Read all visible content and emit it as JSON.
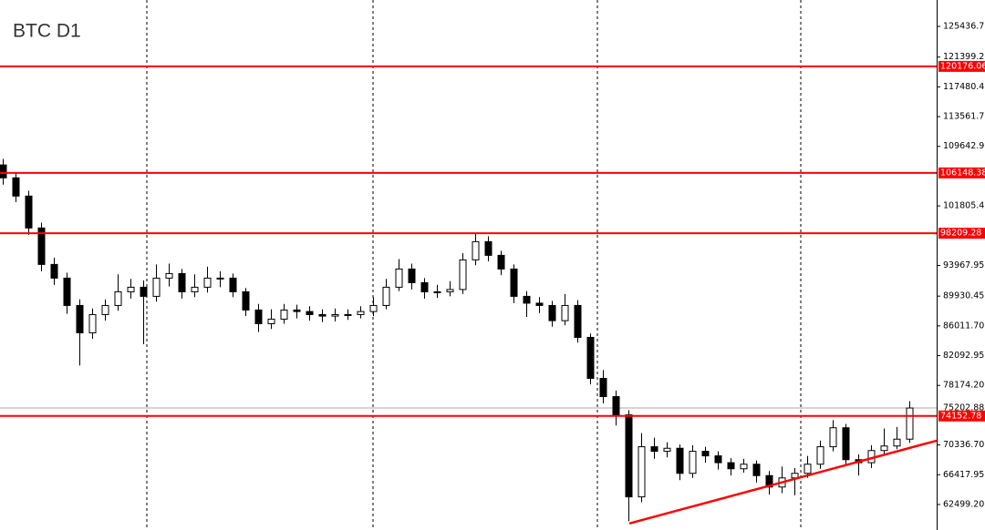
{
  "chart_data": {
    "type": "candlestick",
    "title": "BTC D1",
    "open": [
      107200,
      105500,
      103100,
      98900,
      94100,
      92300,
      88700,
      85100,
      87500,
      88700,
      90500,
      91100,
      89900,
      92300,
      92900,
      90500,
      91100,
      92300,
      92300,
      90500,
      88100,
      86300,
      86900,
      88100,
      87900,
      87500,
      87300,
      87500,
      87500,
      87900,
      88700,
      91100,
      93500,
      91700,
      90500,
      90500,
      90800,
      94700,
      97100,
      95300,
      93500,
      89900,
      89000,
      88700,
      86700,
      88700,
      84500,
      79100,
      76700,
      74300,
      63500,
      70100,
      69500,
      69900,
      66600,
      69500,
      68900,
      68000,
      67200,
      67800,
      66300,
      64800,
      66000,
      66600,
      67800,
      70100,
      72600,
      68400,
      68000,
      69600,
      70200,
      71100
    ],
    "high": [
      108000,
      106200,
      103800,
      99600,
      95000,
      93000,
      89500,
      88300,
      89500,
      92800,
      92200,
      92000,
      94100,
      94200,
      93500,
      92800,
      93800,
      93200,
      92900,
      91000,
      88900,
      88200,
      88900,
      88800,
      88600,
      88200,
      88300,
      88200,
      88600,
      89800,
      92200,
      94800,
      94200,
      92300,
      91400,
      91900,
      95600,
      98300,
      97800,
      95900,
      94100,
      90600,
      89800,
      89300,
      90200,
      89400,
      85000,
      80200,
      77500,
      74900,
      71900,
      71300,
      70700,
      70400,
      70300,
      70100,
      69500,
      68600,
      68500,
      68300,
      66900,
      67500,
      67300,
      68900,
      70900,
      73600,
      73100,
      69100,
      70300,
      72500,
      72700,
      76100
    ],
    "low": [
      104600,
      102300,
      98000,
      93200,
      91400,
      87600,
      80800,
      84300,
      86700,
      88000,
      89600,
      83600,
      89200,
      91200,
      89600,
      89800,
      90400,
      91100,
      89800,
      87300,
      85200,
      85600,
      86300,
      87000,
      86700,
      86500,
      86600,
      86800,
      87000,
      87300,
      88200,
      90600,
      90800,
      89600,
      89700,
      89900,
      90200,
      94000,
      94500,
      92700,
      89000,
      87200,
      87700,
      85900,
      86100,
      83800,
      78300,
      75800,
      72900,
      60300,
      62800,
      68500,
      68700,
      65700,
      66000,
      68000,
      67100,
      66300,
      66700,
      65400,
      63800,
      64000,
      63700,
      66000,
      67200,
      69500,
      67600,
      66300,
      67300,
      69100,
      69800,
      70600
    ],
    "close": [
      105500,
      103100,
      98900,
      94100,
      92300,
      88700,
      85100,
      87500,
      88700,
      90500,
      91100,
      89900,
      92300,
      92900,
      90500,
      91100,
      92300,
      92300,
      90500,
      88100,
      86300,
      86900,
      88100,
      87900,
      87500,
      87300,
      87500,
      87500,
      87900,
      88700,
      91100,
      93500,
      91700,
      90500,
      90500,
      90800,
      94700,
      97100,
      95300,
      93500,
      89900,
      89000,
      88700,
      86700,
      88700,
      84500,
      79100,
      76700,
      74300,
      63500,
      70100,
      69500,
      69900,
      66600,
      69500,
      68900,
      68000,
      67200,
      67800,
      66300,
      64800,
      66000,
      66600,
      67800,
      70100,
      72600,
      68400,
      68000,
      69600,
      70200,
      71100,
      75200
    ],
    "up_color": "#ffffff",
    "down_color": "#000000",
    "border_color": "#000000",
    "ylim": [
      59140,
      128913
    ],
    "yticks": [
      {
        "value": 125436.7,
        "label": "125436.70"
      },
      {
        "value": 121399.2,
        "label": "121399.20"
      },
      117480.45,
      {
        "value": 113561.7,
        "label": "113561.70"
      },
      109642.95,
      101805.45,
      93967.95,
      89930.45,
      {
        "value": 86011.7,
        "label": "86011.70"
      },
      82092.95,
      {
        "value": 78174.2,
        "label": "78174.20"
      },
      {
        "value": 70336.7,
        "label": "70336.70"
      },
      66417.95,
      {
        "value": 62499.2,
        "label": "62499.20"
      }
    ],
    "levels": [
      120176.06,
      106148.38,
      98209.28,
      74152.78
    ],
    "level_color": "#ff0000",
    "current_price": 75202.88,
    "trendline": {
      "values": [
        60000,
        70900
      ],
      "color": "#ff0000"
    }
  }
}
